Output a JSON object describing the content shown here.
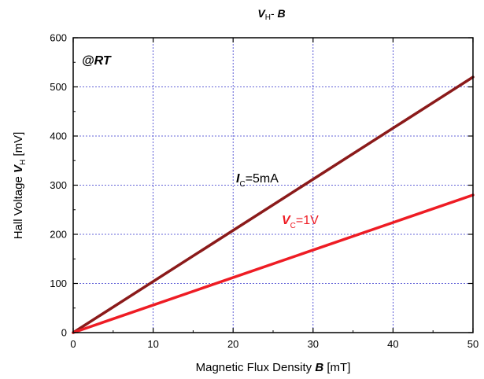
{
  "chart_data": {
    "type": "line",
    "title": {
      "main": "V",
      "main_sub": "H",
      "sep": "- ",
      "var": "B"
    },
    "xlabel": {
      "text": "Magnetic Flux Density ",
      "var": "B",
      "unit": " [mT]"
    },
    "ylabel": {
      "text": "Hall Voltage ",
      "var": "V",
      "var_sub": "H",
      "unit": " [mV]"
    },
    "xlim": [
      0,
      50
    ],
    "ylim": [
      0,
      600
    ],
    "xticks": [
      0,
      10,
      20,
      30,
      40,
      50
    ],
    "yticks": [
      0,
      100,
      200,
      300,
      400,
      500,
      600
    ],
    "xtick_labels": [
      "0",
      "10",
      "20",
      "30",
      "40",
      "50"
    ],
    "ytick_labels": [
      "0",
      "100",
      "200",
      "300",
      "400",
      "500",
      "600"
    ],
    "grid": true,
    "grid_color": "#3333cc",
    "series": [
      {
        "label_var": "I",
        "label_sub": "C",
        "label_value": "=5mA",
        "color": "#8b1a1a",
        "x": [
          0,
          50
        ],
        "y": [
          0,
          520
        ]
      },
      {
        "label_var": "V",
        "label_sub": "C",
        "label_value": "=1V",
        "color": "#ee1c24",
        "x": [
          0,
          50
        ],
        "y": [
          0,
          280
        ]
      }
    ],
    "annotations": [
      {
        "text": "@RT"
      }
    ]
  }
}
